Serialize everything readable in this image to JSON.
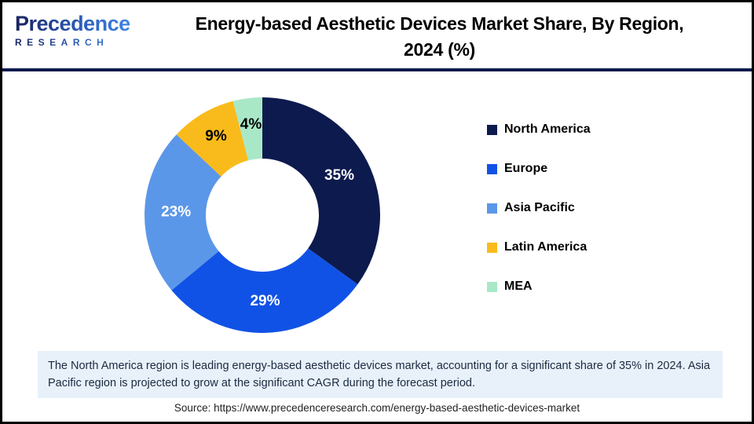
{
  "header": {
    "logo": {
      "name": "Precedence",
      "sub": "RESEARCH"
    },
    "title_line1": "Energy-based Aesthetic Devices Market Share, By Region,",
    "title_line2": "2024 (%)"
  },
  "chart_data": {
    "type": "pie",
    "subtype": "donut",
    "title": "Energy-based Aesthetic Devices Market Share, By Region, 2024 (%)",
    "categories": [
      "North America",
      "Europe",
      "Asia Pacific",
      "Latin America",
      "MEA"
    ],
    "values": [
      35,
      29,
      23,
      9,
      4
    ],
    "labels": [
      "35%",
      "29%",
      "23%",
      "9%",
      "4%"
    ],
    "colors": [
      "#0D1A4E",
      "#1152E6",
      "#5B97E8",
      "#F9BB1B",
      "#A9E8C7"
    ],
    "label_colors": [
      "#FFFFFF",
      "#FFFFFF",
      "#FFFFFF",
      "#000000",
      "#000000"
    ],
    "start_angle_deg": 0,
    "direction": "clockwise",
    "legend_position": "right"
  },
  "footer": {
    "note": "The North America region is leading energy-based aesthetic devices market, accounting for a significant share of 35% in 2024. Asia Pacific region is projected to grow at the significant CAGR during the forecast period.",
    "source": "Source: https://www.precedenceresearch.com/energy-based-aesthetic-devices-market"
  }
}
